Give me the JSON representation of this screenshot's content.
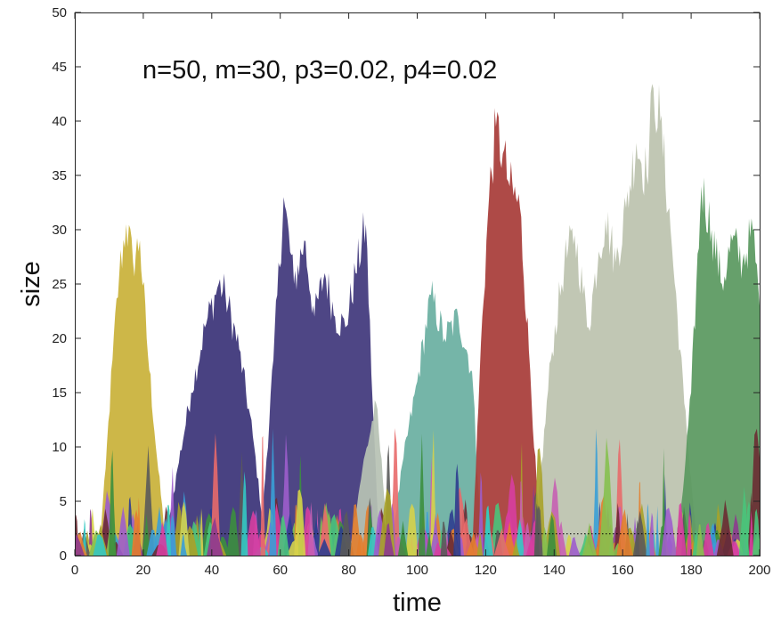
{
  "chart_data": {
    "type": "area",
    "annotation": "n=50, m=30, p3=0.02, p4=0.02",
    "xlabel": "time",
    "ylabel": "size",
    "xlim": [
      0,
      200
    ],
    "ylim": [
      0,
      50
    ],
    "xticks": [
      0,
      20,
      40,
      60,
      80,
      100,
      120,
      140,
      160,
      180,
      200
    ],
    "yticks": [
      0,
      5,
      10,
      15,
      20,
      25,
      30,
      35,
      40,
      45,
      50
    ],
    "reference_line": {
      "y": 2,
      "style": "dotted",
      "color": "#000000"
    },
    "grid": false,
    "legend": "none",
    "large_series": [
      {
        "color": "#c9b13a",
        "x": [
          7,
          9,
          11,
          13,
          15,
          17,
          19,
          21,
          24,
          27
        ],
        "y": [
          0,
          8,
          18,
          26,
          30.5,
          27,
          29,
          20,
          9,
          0
        ]
      },
      {
        "color": "#3b3479",
        "x": [
          26,
          30,
          34,
          38,
          42,
          44,
          48,
          52,
          56
        ],
        "y": [
          0,
          8,
          15,
          21,
          25,
          24,
          19,
          11,
          0
        ]
      },
      {
        "color": "#41387c",
        "x": [
          54,
          58,
          61,
          64,
          67,
          70,
          73,
          76,
          79,
          82,
          85,
          87,
          89
        ],
        "y": [
          0,
          18,
          33,
          25,
          29,
          22,
          26,
          22,
          21,
          26,
          30.5,
          14,
          0
        ]
      },
      {
        "color": "#b7c2b4",
        "x": [
          80,
          84,
          88,
          92
        ],
        "y": [
          0,
          8,
          14,
          0
        ]
      },
      {
        "color": "#6aafa1",
        "x": [
          92,
          96,
          100,
          104,
          108,
          112,
          116,
          119
        ],
        "y": [
          0,
          9,
          16,
          24,
          20,
          22,
          17,
          0
        ]
      },
      {
        "color": "#a83c39",
        "x": [
          116,
          119,
          121,
          123,
          125,
          127,
          130,
          133,
          136
        ],
        "y": [
          0,
          22,
          33,
          39.5,
          37,
          34,
          32,
          17,
          0
        ]
      },
      {
        "color": "#bcc3ae",
        "x": [
          134,
          139,
          143,
          146,
          150,
          153,
          155,
          158,
          161,
          164,
          167,
          169,
          171,
          174,
          178,
          182
        ],
        "y": [
          0,
          18,
          27,
          29.5,
          21,
          28,
          31,
          27,
          32,
          38,
          35,
          43,
          40,
          30,
          14,
          0
        ]
      },
      {
        "color": "#5a9960",
        "x": [
          176,
          180,
          183,
          186,
          189,
          192,
          195,
          198,
          200
        ],
        "y": [
          0,
          15,
          34,
          30,
          25,
          29,
          27,
          30,
          23
        ]
      }
    ],
    "small_series_palette": [
      "#3c8f3e",
      "#d73ea0",
      "#34c9c3",
      "#8d3a8f",
      "#e37e2e",
      "#a8a229",
      "#2d3d8f",
      "#c75fb3",
      "#86c04f",
      "#6b2b33",
      "#3a9fd6",
      "#d6d24a",
      "#5a5a5a",
      "#9d5dcc",
      "#e86a6a",
      "#49c47b"
    ]
  }
}
